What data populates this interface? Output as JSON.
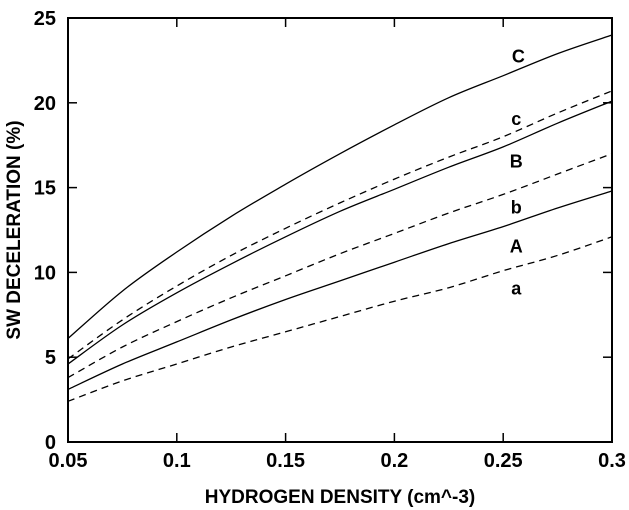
{
  "chart_data": {
    "type": "line",
    "title": "",
    "xlabel": "HYDROGEN DENSITY (cm^-3)",
    "ylabel": "SW DECELERATION (%)",
    "xlim": [
      0.05,
      0.3
    ],
    "ylim": [
      0,
      25
    ],
    "xticks": [
      0.05,
      0.1,
      0.15,
      0.2,
      0.25,
      0.3
    ],
    "xtick_labels": [
      "0.05",
      "0.1",
      "0.15",
      "0.2",
      "0.25",
      "0.3"
    ],
    "yticks": [
      0,
      5,
      10,
      15,
      20,
      25
    ],
    "ytick_labels": [
      "0",
      "5",
      "10",
      "15",
      "20",
      "25"
    ],
    "grid": false,
    "legend": "none",
    "series": [
      {
        "name": "C",
        "style": "solid",
        "x": [
          0.05,
          0.075,
          0.1,
          0.125,
          0.15,
          0.175,
          0.2,
          0.225,
          0.25,
          0.275,
          0.3
        ],
        "y": [
          6.1,
          8.9,
          11.2,
          13.3,
          15.2,
          17.0,
          18.7,
          20.3,
          21.6,
          22.9,
          24.0
        ]
      },
      {
        "name": "c",
        "style": "dashed",
        "x": [
          0.05,
          0.075,
          0.1,
          0.125,
          0.15,
          0.175,
          0.2,
          0.225,
          0.25,
          0.275,
          0.3
        ],
        "y": [
          4.9,
          7.2,
          9.2,
          11.0,
          12.6,
          14.1,
          15.5,
          16.8,
          18.0,
          19.4,
          20.7
        ]
      },
      {
        "name": "B",
        "style": "solid",
        "x": [
          0.05,
          0.075,
          0.1,
          0.125,
          0.15,
          0.175,
          0.2,
          0.225,
          0.25,
          0.275,
          0.3
        ],
        "y": [
          4.6,
          6.9,
          8.8,
          10.5,
          12.1,
          13.6,
          14.9,
          16.2,
          17.4,
          18.8,
          20.1
        ]
      },
      {
        "name": "b",
        "style": "dashed",
        "x": [
          0.05,
          0.075,
          0.1,
          0.125,
          0.15,
          0.175,
          0.2,
          0.225,
          0.25,
          0.275,
          0.3
        ],
        "y": [
          3.8,
          5.6,
          7.1,
          8.5,
          9.8,
          11.1,
          12.3,
          13.5,
          14.6,
          15.8,
          17.0
        ]
      },
      {
        "name": "A",
        "style": "solid",
        "x": [
          0.05,
          0.075,
          0.1,
          0.125,
          0.15,
          0.175,
          0.2,
          0.225,
          0.25,
          0.275,
          0.3
        ],
        "y": [
          3.1,
          4.6,
          5.9,
          7.2,
          8.4,
          9.5,
          10.6,
          11.7,
          12.7,
          13.8,
          14.8
        ]
      },
      {
        "name": "a",
        "style": "dashed",
        "x": [
          0.05,
          0.075,
          0.1,
          0.125,
          0.15,
          0.175,
          0.2,
          0.225,
          0.25,
          0.275,
          0.3
        ],
        "y": [
          2.4,
          3.6,
          4.6,
          5.6,
          6.5,
          7.4,
          8.3,
          9.1,
          10.1,
          11.0,
          12.1
        ]
      }
    ],
    "annotations": [
      {
        "text": "C",
        "x": 0.257,
        "y": 22.8
      },
      {
        "text": "c",
        "x": 0.256,
        "y": 19.1
      },
      {
        "text": "B",
        "x": 0.256,
        "y": 16.6
      },
      {
        "text": "b",
        "x": 0.256,
        "y": 13.9
      },
      {
        "text": "A",
        "x": 0.256,
        "y": 11.6
      },
      {
        "text": "a",
        "x": 0.256,
        "y": 9.1
      }
    ]
  }
}
